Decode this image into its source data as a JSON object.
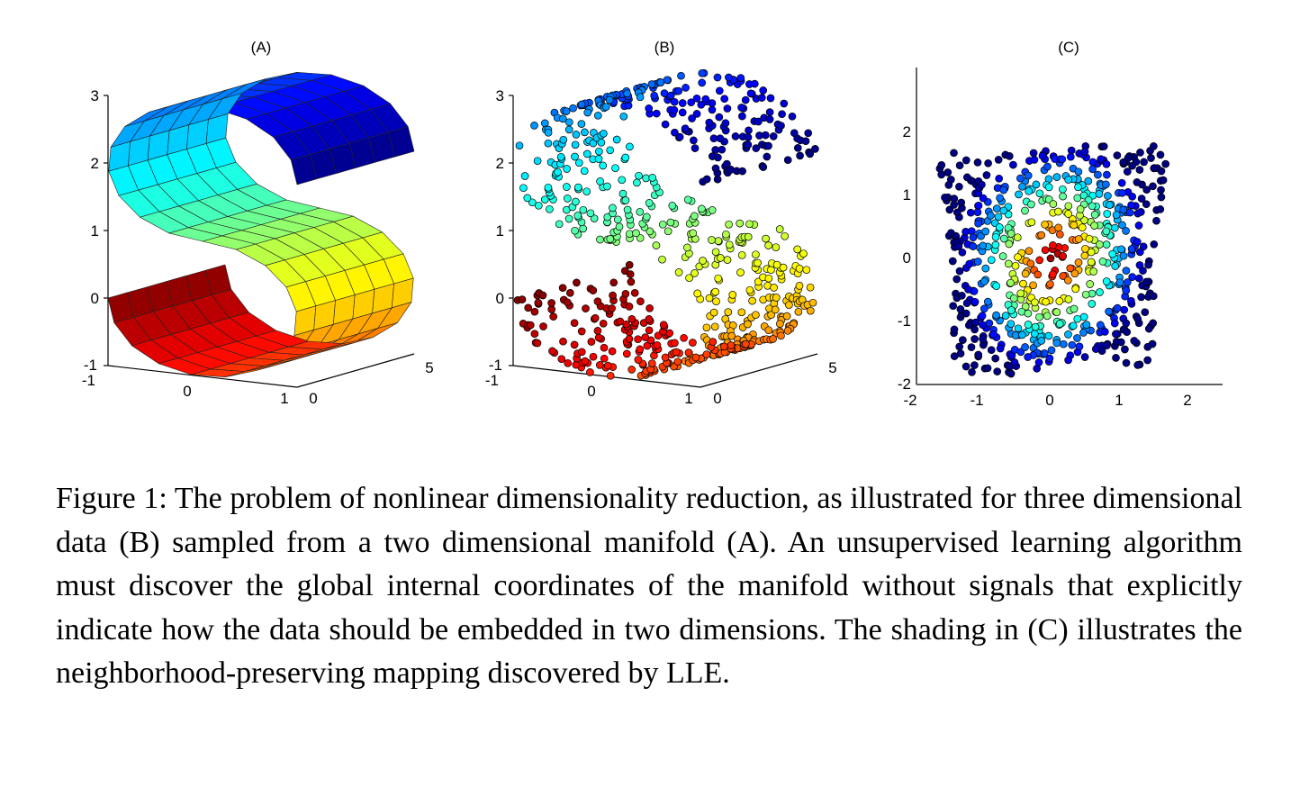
{
  "figure": {
    "panels": [
      {
        "id": "A",
        "title": "(A)"
      },
      {
        "id": "B",
        "title": "(B)"
      },
      {
        "id": "C",
        "title": "(C)"
      }
    ],
    "caption": "Figure 1: The problem of nonlinear dimensionality reduction, as illustrated for three dimensional data (B) sampled from a two dimensional manifold (A). An unsupervised learning algorithm must discover the global internal coordinates of the manifold without signals that explicitly indicate how the data should be embedded in two dimensions. The shading in (C) illustrates the neighborhood-preserving mapping discovered by LLE."
  },
  "chart_data": [
    {
      "type": "surface",
      "title": "(A)",
      "z_ticks": [
        "-1",
        "0",
        "1",
        "2",
        "3"
      ],
      "x_ticks": [
        "-1",
        "0",
        "1"
      ],
      "y_ticks": [
        "0",
        "5"
      ],
      "zlim": [
        -1,
        3
      ],
      "xlim": [
        -1,
        1
      ],
      "ylim": [
        0,
        5
      ],
      "colormap": "jet",
      "description_values": {
        "manifold": "S-curve"
      }
    },
    {
      "type": "scatter",
      "title": "(B)",
      "z_ticks": [
        "-1",
        "0",
        "1",
        "2",
        "3"
      ],
      "x_ticks": [
        "-1",
        "0",
        "1"
      ],
      "y_ticks": [
        "0",
        "5"
      ],
      "zlim": [
        -1,
        3
      ],
      "xlim": [
        -1,
        1
      ],
      "ylim": [
        0,
        5
      ],
      "colormap": "jet"
    },
    {
      "type": "scatter",
      "title": "(C)",
      "x_ticks": [
        "-2",
        "-1",
        "0",
        "1",
        "2"
      ],
      "y_ticks": [
        "-2",
        "-1",
        "0",
        "1",
        "2"
      ],
      "xlim": [
        -2,
        2.5
      ],
      "ylim": [
        -2,
        3
      ],
      "colormap": "jet"
    }
  ]
}
